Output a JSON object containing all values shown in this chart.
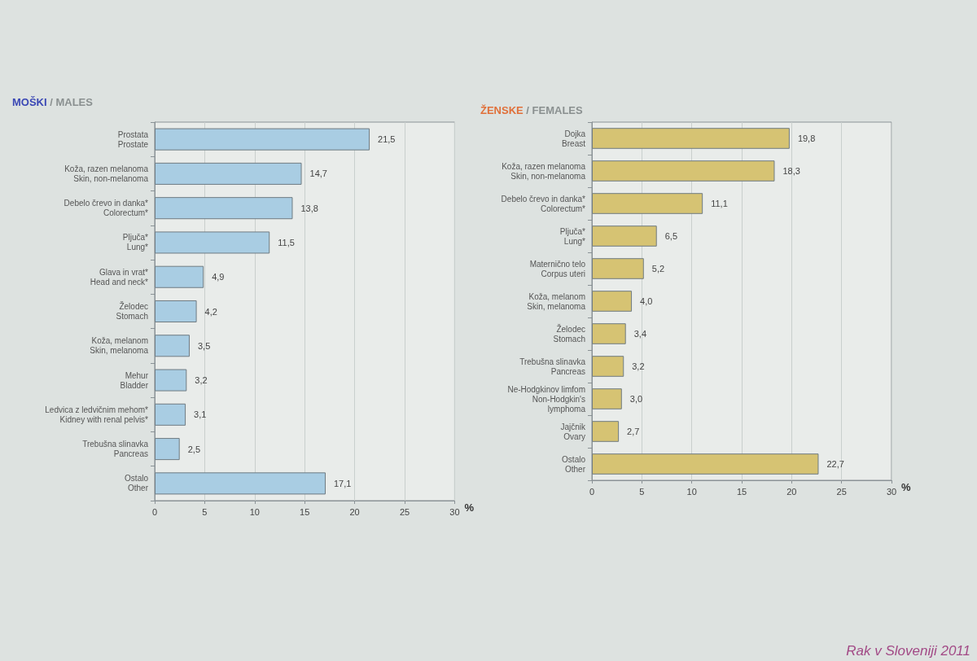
{
  "chart_data": [
    {
      "type": "bar",
      "orientation": "horizontal",
      "title": "MOŠKI / MALES",
      "xlabel": "%",
      "categories": [
        "Prostata\nProstate",
        "Koža, razen melanoma\nSkin, non-melanoma",
        "Debelo črevo in danka*\nColorectum*",
        "Pljuča*\nLung*",
        "Glava in vrat*\nHead and neck*",
        "Želodec\nStomach",
        "Koža, melanom\nSkin, melanoma",
        "Mehur\nBladder",
        "Ledvica z ledvičnim mehom*\nKidney with renal pelvis*",
        "Trebušna slinavka\nPancreas",
        "Ostalo\nOther"
      ],
      "values": [
        21.5,
        14.7,
        13.8,
        11.5,
        4.9,
        4.2,
        3.5,
        3.2,
        3.1,
        2.5,
        17.1
      ],
      "value_labels": [
        "21,5",
        "14,7",
        "13,8",
        "11,5",
        "4,9",
        "4,2",
        "3,5",
        "3,2",
        "3,1",
        "2,5",
        "17,1"
      ],
      "color": "#a9cde3",
      "xlim": [
        0,
        30
      ],
      "xticks": [
        0,
        5,
        10,
        15,
        20,
        25,
        30
      ],
      "grid": "x"
    },
    {
      "type": "bar",
      "orientation": "horizontal",
      "title": "ŽENSKE / FEMALES",
      "xlabel": "%",
      "categories": [
        "Dojka\nBreast",
        "Koža, razen melanoma\nSkin, non-melanoma",
        "Debelo črevo in danka*\nColorectum*",
        "Pljuča*\nLung*",
        "Maternično telo\nCorpus uteri",
        "Koža, melanom\nSkin, melanoma",
        "Želodec\nStomach",
        "Trebušna slinavka\nPancreas",
        "Ne-Hodgkinov limfom\nNon-Hodgkin's\nlymphoma",
        "Jajčnik\nOvary",
        "Ostalo\nOther"
      ],
      "values": [
        19.8,
        18.3,
        11.1,
        6.5,
        5.2,
        4.0,
        3.4,
        3.2,
        3.0,
        2.7,
        22.7
      ],
      "value_labels": [
        "19,8",
        "18,3",
        "11,1",
        "6,5",
        "5,2",
        "4,0",
        "3,4",
        "3,2",
        "3,0",
        "2,7",
        "22,7"
      ],
      "color": "#d6c373",
      "xlim": [
        0,
        30
      ],
      "xticks": [
        0,
        5,
        10,
        15,
        20,
        25,
        30
      ],
      "grid": "x",
      "annotations": [
        "Rak v Sloveniji 2011"
      ]
    }
  ]
}
